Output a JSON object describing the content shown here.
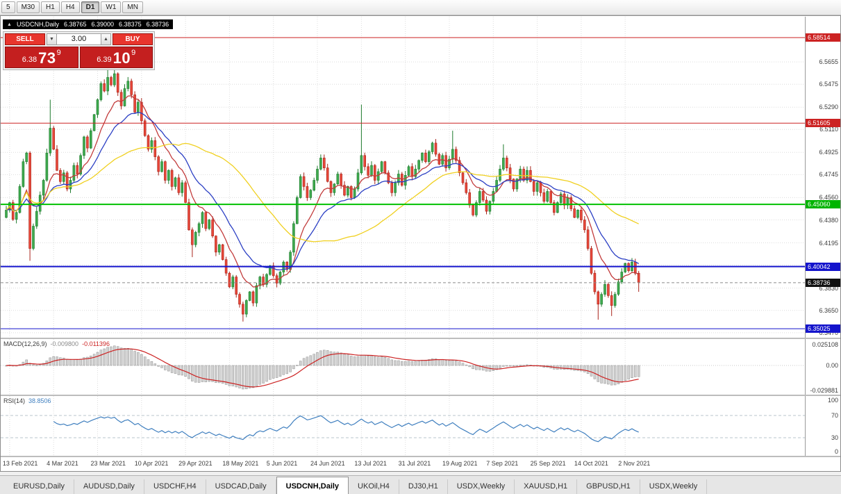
{
  "toolbar": {
    "timeframes": [
      {
        "label": "5",
        "active": false
      },
      {
        "label": "M30",
        "active": false
      },
      {
        "label": "H1",
        "active": false
      },
      {
        "label": "H4",
        "active": false
      },
      {
        "label": "D1",
        "active": true
      },
      {
        "label": "W1",
        "active": false
      },
      {
        "label": "MN",
        "active": false
      }
    ]
  },
  "quote_bar": {
    "tick": "▲",
    "symbol": "USDCNH,Daily",
    "open": "6.38765",
    "high": "6.39000",
    "low": "6.38375",
    "close": "6.38736"
  },
  "trade_panel": {
    "sell_label": "SELL",
    "buy_label": "BUY",
    "volume": "3.00",
    "bid": {
      "prefix": "6.38",
      "big": "73",
      "sup": "9"
    },
    "ask": {
      "prefix": "6.39",
      "big": "10",
      "sup": "9"
    },
    "button_color": "#e8352d",
    "price_box_color": "#c41f1f"
  },
  "price_axis": {
    "labels": [
      "6.5655",
      "6.5475",
      "6.5290",
      "6.5110",
      "6.4925",
      "6.4745",
      "6.4560",
      "6.4380",
      "6.4195",
      "6.4015",
      "6.3830",
      "6.3650",
      "6.3470"
    ],
    "tags": [
      {
        "text": "6.58514",
        "price": 6.58514,
        "color": "#cc2222"
      },
      {
        "text": "6.51605",
        "price": 6.51605,
        "color": "#cc2222"
      },
      {
        "text": "6.45060",
        "price": 6.4506,
        "color": "#00b400"
      },
      {
        "text": "6.40042",
        "price": 6.40042,
        "color": "#1414cc"
      },
      {
        "text": "6.38736",
        "price": 6.38736,
        "color": "#111111"
      },
      {
        "text": "6.35025",
        "price": 6.35025,
        "color": "#1414cc"
      }
    ]
  },
  "chart_data": {
    "type": "candlestick",
    "symbol": "USDCNH",
    "timeframe": "Daily",
    "price_range": [
      6.343,
      6.602
    ],
    "first_open": 6.44,
    "closes": [
      6.446,
      6.452,
      6.4385,
      6.444,
      6.465,
      6.485,
      6.492,
      6.415,
      6.433,
      6.445,
      6.458,
      6.47,
      6.492,
      6.512,
      6.495,
      6.478,
      6.469,
      6.476,
      6.463,
      6.47,
      6.482,
      6.475,
      6.49,
      6.505,
      6.496,
      6.51,
      6.523,
      6.535,
      6.548,
      6.542,
      6.553,
      6.547,
      6.556,
      6.541,
      6.53,
      6.544,
      6.55,
      6.539,
      6.525,
      6.533,
      6.518,
      6.506,
      6.495,
      6.502,
      6.489,
      6.477,
      6.485,
      6.47,
      6.478,
      6.465,
      6.472,
      6.46,
      6.468,
      6.452,
      6.43,
      6.418,
      6.428,
      6.435,
      6.444,
      6.431,
      6.438,
      6.425,
      6.412,
      6.418,
      6.406,
      6.395,
      6.384,
      6.392,
      6.378,
      6.37,
      6.362,
      6.373,
      6.38,
      6.371,
      6.385,
      6.392,
      6.386,
      6.394,
      6.401,
      6.393,
      6.387,
      6.396,
      6.404,
      6.398,
      6.412,
      6.435,
      6.456,
      6.473,
      6.465,
      6.456,
      6.462,
      6.47,
      6.479,
      6.488,
      6.48,
      6.469,
      6.46,
      6.467,
      6.475,
      6.466,
      6.458,
      6.465,
      6.456,
      6.463,
      6.476,
      6.49,
      6.481,
      6.474,
      6.482,
      6.47,
      6.477,
      6.485,
      6.476,
      6.468,
      6.46,
      6.468,
      6.475,
      6.466,
      6.474,
      6.481,
      6.473,
      6.479,
      6.486,
      6.492,
      6.485,
      6.493,
      6.5,
      6.491,
      6.483,
      6.49,
      6.48,
      6.487,
      6.495,
      6.486,
      6.476,
      6.468,
      6.46,
      6.45,
      6.442,
      6.452,
      6.461,
      6.454,
      6.445,
      6.453,
      6.461,
      6.47,
      6.479,
      6.488,
      6.48,
      6.471,
      6.463,
      6.471,
      6.479,
      6.47,
      6.478,
      6.469,
      6.461,
      6.468,
      6.46,
      6.453,
      6.461,
      6.452,
      6.444,
      6.452,
      6.459,
      6.45,
      6.456,
      6.447,
      6.44,
      6.446,
      6.438,
      6.43,
      6.415,
      6.395,
      6.38,
      6.37,
      6.378,
      6.386,
      6.377,
      6.369,
      6.378,
      6.388,
      6.396,
      6.403,
      6.397,
      6.404,
      6.395,
      6.3874
    ],
    "wick_overrides": {
      "7": [
        null,
        6.405
      ],
      "13": [
        6.535,
        null
      ],
      "30": [
        6.562,
        null
      ],
      "32": [
        6.565,
        null
      ],
      "55": [
        null,
        6.408
      ],
      "70": [
        null,
        6.356
      ],
      "105": [
        6.531,
        null
      ],
      "132": [
        6.51,
        null
      ],
      "147": [
        6.499,
        null
      ],
      "175": [
        null,
        6.3575
      ],
      "179": [
        null,
        6.3605
      ],
      "187": [
        null,
        6.38
      ]
    },
    "moving_averages": [
      {
        "type": "EMA",
        "period": 10,
        "color": "#c23b3b"
      },
      {
        "type": "EMA",
        "period": 20,
        "color": "#2b3fc4"
      },
      {
        "type": "SMA",
        "period": 45,
        "color": "#f0d020"
      }
    ],
    "levels": [
      {
        "price": 6.58514,
        "color": "#cc2222",
        "width": 1
      },
      {
        "price": 6.51605,
        "color": "#cc2222",
        "width": 1
      },
      {
        "price": 6.4506,
        "color": "#00c000",
        "width": 2
      },
      {
        "price": 6.40042,
        "color": "#1414cc",
        "width": 2
      },
      {
        "price": 6.35025,
        "color": "#1414cc",
        "width": 1
      }
    ],
    "current_price": 6.38736,
    "x_label_indices": [
      1,
      14,
      27,
      40,
      53,
      66,
      79,
      92,
      105,
      118,
      131,
      144,
      157,
      170,
      183
    ],
    "up_color": "#3faa4f",
    "up_border": "#1d7a2c",
    "down_color": "#e8483a",
    "down_border": "#a8231a"
  },
  "macd_panel": {
    "title": "MACD(12,26,9)",
    "value_main": "-0.009800",
    "value_signal": "-0.011396",
    "fast": 12,
    "slow": 26,
    "signal": 9,
    "axis_labels": [
      "0.025108",
      "0.00",
      "-0.029881"
    ],
    "axis_values": [
      0.025108,
      0,
      -0.029881
    ],
    "hist_color": "#d2d2d2",
    "hist_border": "#8f8f8f",
    "signal_color": "#cc2222"
  },
  "rsi_panel": {
    "title": "RSI(14)",
    "value": "38.8506",
    "period": 14,
    "axis_labels": [
      "100",
      "70",
      "30",
      "0"
    ],
    "axis_values": [
      100,
      70,
      30,
      0
    ],
    "levels": [
      70,
      30
    ],
    "line_color": "#3f7fbf"
  },
  "date_axis": {
    "labels": [
      "13 Feb 2021",
      "4 Mar 2021",
      "23 Mar 2021",
      "10 Apr 2021",
      "29 Apr 2021",
      "18 May 2021",
      "5 Jun 2021",
      "24 Jun 2021",
      "13 Jul 2021",
      "31 Jul 2021",
      "19 Aug 2021",
      "7 Sep 2021",
      "25 Sep 2021",
      "14 Oct 2021",
      "2 Nov 2021"
    ]
  },
  "tab_bar": {
    "tabs": [
      {
        "label": "EURUSD,Daily",
        "active": false
      },
      {
        "label": "AUDUSD,Daily",
        "active": false
      },
      {
        "label": "USDCHF,H4",
        "active": false
      },
      {
        "label": "USDCAD,Daily",
        "active": false
      },
      {
        "label": "USDCNH,Daily",
        "active": true
      },
      {
        "label": "UKOil,H4",
        "active": false
      },
      {
        "label": "DJ30,H1",
        "active": false
      },
      {
        "label": "USDX,Weekly",
        "active": false
      },
      {
        "label": "XAUUSD,H1",
        "active": false
      },
      {
        "label": "GBPUSD,H1",
        "active": false
      },
      {
        "label": "USDX,Weekly",
        "active": false
      }
    ]
  }
}
